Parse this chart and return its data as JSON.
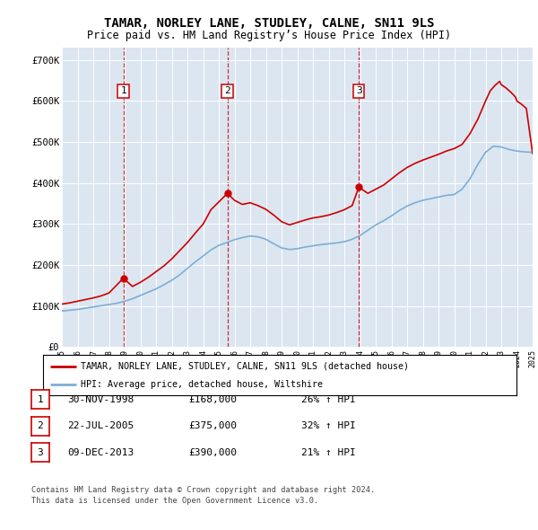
{
  "title": "TAMAR, NORLEY LANE, STUDLEY, CALNE, SN11 9LS",
  "subtitle": "Price paid vs. HM Land Registry’s House Price Index (HPI)",
  "plot_bg_color": "#dce6f1",
  "ylim": [
    0,
    730000
  ],
  "yticks": [
    0,
    100000,
    200000,
    300000,
    400000,
    500000,
    600000,
    700000
  ],
  "ytick_labels": [
    "£0",
    "£100K",
    "£200K",
    "£300K",
    "£400K",
    "£500K",
    "£600K",
    "£700K"
  ],
  "sale_dates_num": [
    1998.92,
    2005.55,
    2013.92
  ],
  "sale_prices": [
    168000,
    375000,
    390000
  ],
  "sale_labels": [
    "1",
    "2",
    "3"
  ],
  "legend_house_label": "TAMAR, NORLEY LANE, STUDLEY, CALNE, SN11 9LS (detached house)",
  "legend_hpi_label": "HPI: Average price, detached house, Wiltshire",
  "house_line_color": "#cc0000",
  "hpi_line_color": "#7bafd4",
  "footer_line1": "Contains HM Land Registry data © Crown copyright and database right 2024.",
  "footer_line2": "This data is licensed under the Open Government Licence v3.0.",
  "table_rows": [
    [
      "1",
      "30-NOV-1998",
      "£168,000",
      "26% ↑ HPI"
    ],
    [
      "2",
      "22-JUL-2005",
      "£375,000",
      "32% ↑ HPI"
    ],
    [
      "3",
      "09-DEC-2013",
      "£390,000",
      "21% ↑ HPI"
    ]
  ],
  "hpi_years": [
    1995.0,
    1995.5,
    1996.0,
    1996.5,
    1997.0,
    1997.5,
    1998.0,
    1998.5,
    1999.0,
    1999.5,
    2000.0,
    2000.5,
    2001.0,
    2001.5,
    2002.0,
    2002.5,
    2003.0,
    2003.5,
    2004.0,
    2004.5,
    2005.0,
    2005.5,
    2006.0,
    2006.5,
    2007.0,
    2007.5,
    2008.0,
    2008.5,
    2009.0,
    2009.5,
    2010.0,
    2010.5,
    2011.0,
    2011.5,
    2012.0,
    2012.5,
    2013.0,
    2013.5,
    2014.0,
    2014.5,
    2015.0,
    2015.5,
    2016.0,
    2016.5,
    2017.0,
    2017.5,
    2018.0,
    2018.5,
    2019.0,
    2019.5,
    2020.0,
    2020.5,
    2021.0,
    2021.5,
    2022.0,
    2022.5,
    2023.0,
    2023.5,
    2024.0,
    2024.5,
    2025.0
  ],
  "hpi_values": [
    88000,
    90000,
    92000,
    95000,
    98000,
    101000,
    104000,
    107000,
    112000,
    118000,
    126000,
    134000,
    142000,
    152000,
    163000,
    176000,
    192000,
    208000,
    222000,
    237000,
    248000,
    255000,
    262000,
    267000,
    271000,
    269000,
    263000,
    252000,
    242000,
    238000,
    240000,
    244000,
    247000,
    250000,
    252000,
    254000,
    257000,
    263000,
    272000,
    285000,
    298000,
    308000,
    320000,
    333000,
    344000,
    352000,
    358000,
    362000,
    366000,
    370000,
    372000,
    385000,
    410000,
    445000,
    475000,
    490000,
    488000,
    482000,
    478000,
    476000,
    475000
  ],
  "house_x": [
    1995.0,
    1995.5,
    1996.0,
    1996.5,
    1997.0,
    1997.5,
    1998.0,
    1998.92,
    1999.5,
    2000.0,
    2000.5,
    2001.0,
    2001.5,
    2002.0,
    2002.5,
    2003.0,
    2003.5,
    2004.0,
    2004.5,
    2005.55,
    2006.0,
    2006.5,
    2007.0,
    2007.5,
    2008.0,
    2008.5,
    2009.0,
    2009.5,
    2010.0,
    2010.5,
    2011.0,
    2011.5,
    2012.0,
    2012.5,
    2013.0,
    2013.5,
    2013.92,
    2014.5,
    2015.0,
    2015.5,
    2016.0,
    2016.5,
    2017.0,
    2017.5,
    2018.0,
    2018.5,
    2019.0,
    2019.5,
    2020.0,
    2020.5,
    2021.0,
    2021.5,
    2022.0,
    2022.3,
    2022.6,
    2022.9,
    2023.0,
    2023.3,
    2023.6,
    2023.9,
    2024.0,
    2024.3,
    2024.6,
    2025.0
  ],
  "house_y": [
    105000,
    108000,
    112000,
    116000,
    120000,
    125000,
    132000,
    168000,
    148000,
    158000,
    170000,
    184000,
    198000,
    215000,
    235000,
    255000,
    278000,
    300000,
    335000,
    375000,
    358000,
    348000,
    352000,
    345000,
    336000,
    322000,
    306000,
    298000,
    304000,
    310000,
    315000,
    318000,
    322000,
    328000,
    335000,
    345000,
    390000,
    375000,
    385000,
    395000,
    410000,
    425000,
    438000,
    448000,
    456000,
    463000,
    470000,
    478000,
    484000,
    494000,
    520000,
    555000,
    600000,
    625000,
    638000,
    648000,
    640000,
    632000,
    622000,
    610000,
    600000,
    592000,
    582000,
    472000
  ]
}
